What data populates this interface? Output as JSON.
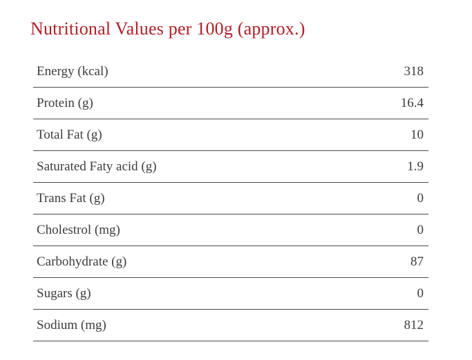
{
  "title": "Nutritional Values per 100g (approx.)",
  "colors": {
    "accent": "#b01f27",
    "text": "#3d3d3d",
    "divider": "#4a4a4a",
    "background": "#ffffff"
  },
  "table": {
    "rows": [
      {
        "label": "Energy (kcal)",
        "value": "318"
      },
      {
        "label": "Protein (g)",
        "value": "16.4"
      },
      {
        "label": "Total Fat (g)",
        "value": "10"
      },
      {
        "label": "Saturated Faty acid (g)",
        "value": "1.9"
      },
      {
        "label": "Trans Fat (g)",
        "value": "0"
      },
      {
        "label": "Cholestrol (mg)",
        "value": "0"
      },
      {
        "label": "Carbohydrate (g)",
        "value": "87"
      },
      {
        "label": "Sugars (g)",
        "value": "0"
      },
      {
        "label": "Sodium (mg)",
        "value": "812"
      }
    ]
  },
  "chart_data": {
    "type": "table",
    "title": "Nutritional Values per 100g (approx.)",
    "categories": [
      "Energy (kcal)",
      "Protein (g)",
      "Total Fat (g)",
      "Saturated Faty acid (g)",
      "Trans Fat (g)",
      "Cholestrol (mg)",
      "Carbohydrate (g)",
      "Sugars (g)",
      "Sodium (mg)"
    ],
    "values": [
      318,
      16.4,
      10,
      1.9,
      0,
      0,
      87,
      0,
      812
    ]
  }
}
